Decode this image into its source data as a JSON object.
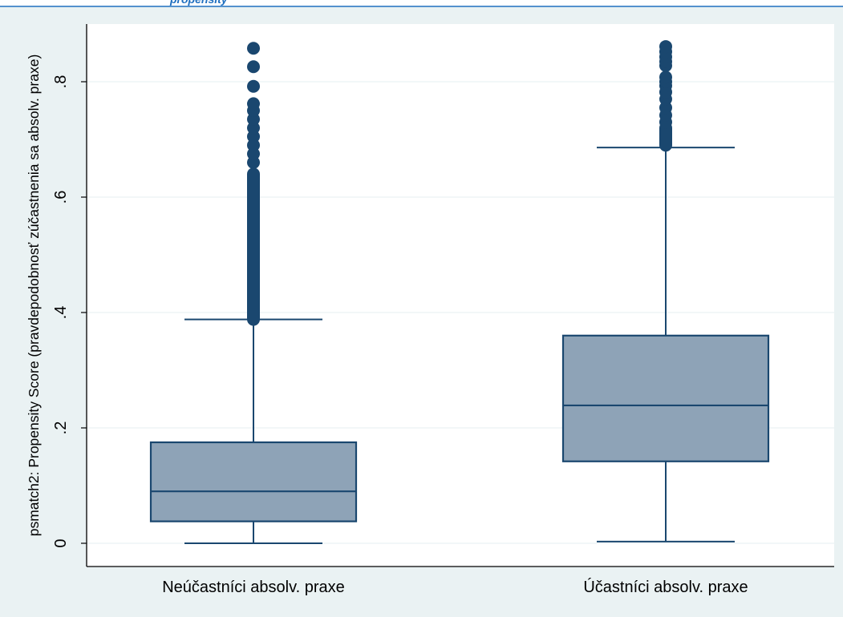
{
  "colors": {
    "background": "#eaf2f3",
    "plot_background": "#ffffff",
    "box_fill": "#8ea3b7",
    "box_stroke": "#1a476f",
    "outlier": "#1a476f",
    "grid": "#eaf2f3",
    "top_bar_accent": "#1f6fbf"
  },
  "header": {
    "cut_off_title_fragment": "propensity"
  },
  "chart_data": {
    "type": "box",
    "ylabel": "psmatch2: Propensity Score (pravdepodobnosť zúčastnenia sa absolv. praxe)",
    "ylim": [
      0,
      0.9
    ],
    "yticks": [
      0,
      0.2,
      0.4,
      0.6,
      0.8
    ],
    "ytick_labels": [
      "0",
      ".2",
      ".4",
      ".6",
      ".8"
    ],
    "grid": true,
    "categories": [
      "Neúčastníci absolv. praxe",
      "Účastníci absolv. praxe"
    ],
    "boxes": [
      {
        "category": "Neúčastníci absolv. praxe",
        "whisker_low": 0.0,
        "q1": 0.038,
        "median": 0.09,
        "q3": 0.175,
        "whisker_high": 0.388,
        "outlier_range": [
          0.388,
          0.64
        ],
        "outliers": [
          0.66,
          0.675,
          0.69,
          0.705,
          0.72,
          0.735,
          0.75,
          0.762,
          0.792,
          0.826,
          0.858
        ]
      },
      {
        "category": "Účastníci absolv. praxe",
        "whisker_low": 0.003,
        "q1": 0.142,
        "median": 0.239,
        "q3": 0.36,
        "whisker_high": 0.686,
        "outlier_range": [
          0.69,
          0.72
        ],
        "outliers": [
          0.73,
          0.742,
          0.755,
          0.77,
          0.782,
          0.793,
          0.8,
          0.808,
          0.828,
          0.835,
          0.843,
          0.852,
          0.861
        ]
      }
    ]
  }
}
